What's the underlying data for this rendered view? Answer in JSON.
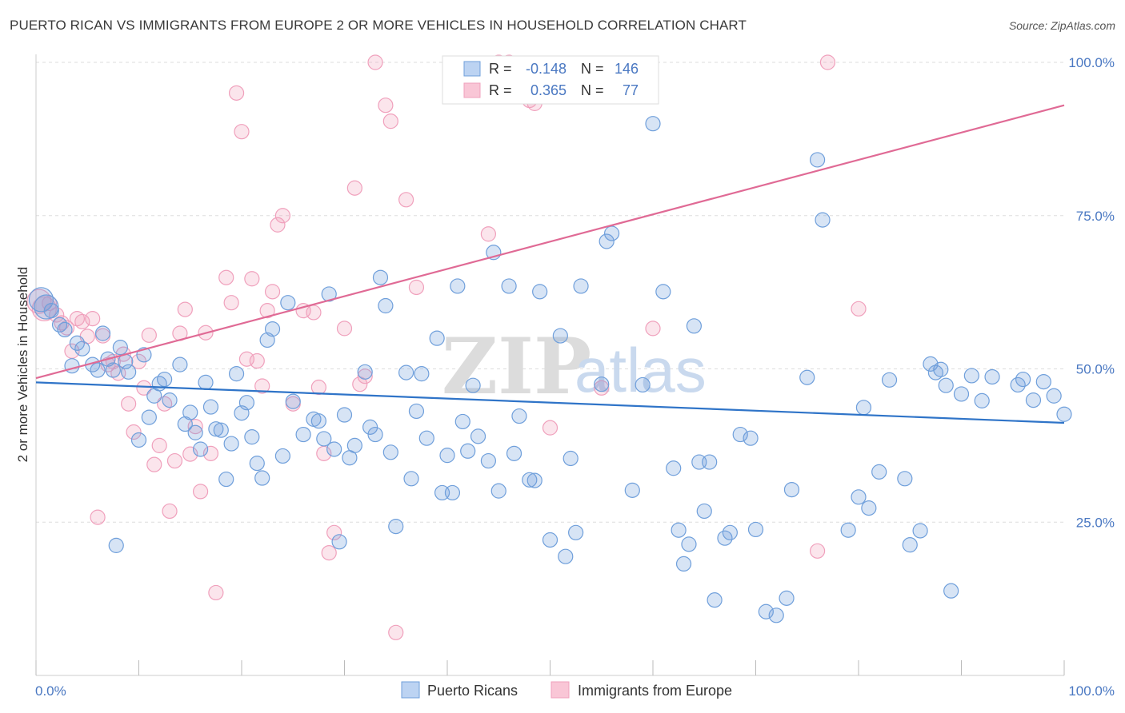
{
  "title": "PUERTO RICAN VS IMMIGRANTS FROM EUROPE 2 OR MORE VEHICLES IN HOUSEHOLD CORRELATION CHART",
  "source": "Source: ZipAtlas.com",
  "watermark": {
    "zip": "ZIP",
    "atlas": "atlas"
  },
  "colors": {
    "blue": "#6f9fdb",
    "pink": "#f0a0bc",
    "blue_line": "#2f74c8",
    "pink_line": "#e06a95",
    "grid": "#dddddd",
    "axis_text": "#4a78c2"
  },
  "stats": {
    "r_label": "R =",
    "n_label": "N =",
    "rows": [
      {
        "series": "Puerto Ricans",
        "r": "-0.148",
        "n": "146"
      },
      {
        "series": "Immigrants from Europe",
        "r": "0.365",
        "n": "77"
      }
    ]
  },
  "legend": [
    "Puerto Ricans",
    "Immigrants from Europe"
  ],
  "chart_data": {
    "type": "scatter",
    "title": "PUERTO RICAN VS IMMIGRANTS FROM EUROPE 2 OR MORE VEHICLES IN HOUSEHOLD CORRELATION CHART",
    "xlabel": "",
    "ylabel": "2 or more Vehicles in Household",
    "xlim": [
      0,
      100
    ],
    "ylim": [
      0,
      100
    ],
    "x_tick_labels": [
      "0.0%",
      "100.0%"
    ],
    "y_tick_labels": [
      "25.0%",
      "50.0%",
      "75.0%",
      "100.0%"
    ],
    "y_ticks": [
      25,
      50,
      75,
      100
    ],
    "grid": true,
    "legend_position": "bottom",
    "series": [
      {
        "name": "Puerto Ricans",
        "trend": {
          "x": [
            0,
            100
          ],
          "y": [
            47.8,
            41.2
          ]
        },
        "points": [
          [
            0.5,
            61.3
          ],
          [
            1.0,
            60.1
          ],
          [
            1.5,
            59.5
          ],
          [
            2.3,
            57.2
          ],
          [
            2.8,
            56.4
          ],
          [
            3.5,
            50.5
          ],
          [
            4.0,
            54.2
          ],
          [
            4.5,
            53.3
          ],
          [
            5.5,
            50.7
          ],
          [
            6.0,
            49.8
          ],
          [
            6.5,
            55.8
          ],
          [
            7.0,
            51.6
          ],
          [
            7.5,
            49.8
          ],
          [
            7.8,
            21.2
          ],
          [
            8.2,
            53.5
          ],
          [
            8.7,
            51.2
          ],
          [
            9.0,
            49.5
          ],
          [
            10.0,
            38.4
          ],
          [
            10.5,
            52.3
          ],
          [
            11.0,
            42.1
          ],
          [
            11.5,
            45.6
          ],
          [
            12.0,
            47.6
          ],
          [
            12.5,
            48.3
          ],
          [
            13.0,
            44.9
          ],
          [
            14.0,
            50.7
          ],
          [
            14.5,
            41.0
          ],
          [
            15.0,
            42.9
          ],
          [
            15.5,
            39.6
          ],
          [
            16.0,
            36.9
          ],
          [
            16.5,
            47.8
          ],
          [
            17.0,
            43.8
          ],
          [
            17.5,
            40.2
          ],
          [
            18.0,
            40.0
          ],
          [
            18.5,
            32.0
          ],
          [
            19.0,
            37.8
          ],
          [
            19.5,
            49.2
          ],
          [
            20.0,
            42.8
          ],
          [
            20.5,
            44.5
          ],
          [
            21.0,
            38.9
          ],
          [
            21.5,
            34.6
          ],
          [
            22.0,
            32.2
          ],
          [
            22.5,
            54.7
          ],
          [
            23.0,
            56.5
          ],
          [
            24.0,
            35.8
          ],
          [
            24.5,
            60.8
          ],
          [
            25.0,
            44.7
          ],
          [
            26.0,
            39.3
          ],
          [
            27.0,
            41.8
          ],
          [
            27.5,
            41.5
          ],
          [
            28.0,
            38.6
          ],
          [
            28.5,
            62.2
          ],
          [
            29.0,
            36.9
          ],
          [
            29.5,
            21.8
          ],
          [
            30.0,
            42.5
          ],
          [
            30.5,
            35.5
          ],
          [
            31.0,
            37.5
          ],
          [
            32.0,
            49.5
          ],
          [
            32.5,
            40.5
          ],
          [
            33.0,
            39.3
          ],
          [
            33.5,
            64.9
          ],
          [
            34.0,
            60.3
          ],
          [
            34.5,
            36.4
          ],
          [
            35.0,
            24.3
          ],
          [
            36.0,
            49.4
          ],
          [
            36.5,
            32.1
          ],
          [
            37.0,
            43.1
          ],
          [
            37.5,
            49.2
          ],
          [
            38.0,
            38.7
          ],
          [
            39.0,
            55.0
          ],
          [
            39.5,
            29.8
          ],
          [
            40.0,
            35.9
          ],
          [
            40.5,
            29.8
          ],
          [
            41.0,
            63.5
          ],
          [
            41.5,
            41.4
          ],
          [
            42.0,
            36.6
          ],
          [
            42.5,
            47.3
          ],
          [
            43.0,
            39.0
          ],
          [
            44.0,
            35.0
          ],
          [
            44.5,
            69.0
          ],
          [
            45.0,
            30.1
          ],
          [
            46.0,
            63.5
          ],
          [
            46.5,
            36.2
          ],
          [
            47.0,
            42.3
          ],
          [
            48.0,
            31.9
          ],
          [
            48.5,
            31.8
          ],
          [
            49.0,
            62.6
          ],
          [
            50.0,
            22.1
          ],
          [
            51.0,
            55.4
          ],
          [
            51.5,
            19.4
          ],
          [
            52.0,
            35.4
          ],
          [
            52.5,
            23.3
          ],
          [
            53.0,
            63.5
          ],
          [
            55.0,
            47.5
          ],
          [
            55.5,
            70.8
          ],
          [
            56.0,
            72.1
          ],
          [
            58.0,
            30.2
          ],
          [
            59.0,
            47.4
          ],
          [
            60.0,
            90.0
          ],
          [
            61.0,
            62.6
          ],
          [
            62.0,
            33.8
          ],
          [
            62.5,
            23.7
          ],
          [
            63.0,
            18.2
          ],
          [
            63.5,
            21.4
          ],
          [
            64.0,
            57.0
          ],
          [
            64.5,
            34.8
          ],
          [
            65.0,
            26.8
          ],
          [
            65.5,
            34.8
          ],
          [
            66.0,
            12.3
          ],
          [
            67.0,
            22.4
          ],
          [
            67.5,
            23.3
          ],
          [
            68.5,
            39.3
          ],
          [
            69.5,
            38.7
          ],
          [
            70.0,
            23.8
          ],
          [
            71.0,
            10.4
          ],
          [
            72.0,
            9.8
          ],
          [
            73.0,
            12.6
          ],
          [
            73.5,
            30.3
          ],
          [
            75.0,
            48.6
          ],
          [
            76.0,
            84.1
          ],
          [
            76.5,
            74.3
          ],
          [
            79.0,
            23.7
          ],
          [
            80.0,
            29.1
          ],
          [
            80.5,
            43.7
          ],
          [
            81.0,
            27.3
          ],
          [
            82.0,
            33.2
          ],
          [
            83.0,
            48.2
          ],
          [
            84.5,
            32.1
          ],
          [
            85.0,
            21.3
          ],
          [
            86.0,
            23.6
          ],
          [
            87.0,
            50.8
          ],
          [
            87.5,
            49.4
          ],
          [
            88.0,
            49.9
          ],
          [
            88.5,
            47.3
          ],
          [
            89.0,
            13.8
          ],
          [
            90.0,
            45.9
          ],
          [
            91.0,
            48.9
          ],
          [
            92.0,
            44.8
          ],
          [
            93.0,
            48.7
          ],
          [
            95.5,
            47.4
          ],
          [
            96.0,
            48.3
          ],
          [
            97.0,
            44.9
          ],
          [
            98.0,
            47.9
          ],
          [
            99.0,
            45.6
          ],
          [
            100.0,
            42.6
          ]
        ]
      },
      {
        "name": "Immigrants from Europe",
        "trend": {
          "x": [
            0,
            100
          ],
          "y": [
            48.5,
            93.0
          ]
        },
        "points": [
          [
            0.3,
            61.0
          ],
          [
            0.8,
            59.8
          ],
          [
            1.3,
            60.7
          ],
          [
            2.0,
            58.8
          ],
          [
            2.5,
            57.5
          ],
          [
            3.0,
            56.7
          ],
          [
            3.5,
            52.9
          ],
          [
            4.0,
            58.2
          ],
          [
            4.5,
            57.7
          ],
          [
            5.0,
            55.3
          ],
          [
            5.5,
            58.2
          ],
          [
            6.0,
            25.8
          ],
          [
            6.5,
            55.4
          ],
          [
            7.0,
            50.7
          ],
          [
            7.5,
            51.2
          ],
          [
            8.0,
            49.3
          ],
          [
            8.5,
            52.4
          ],
          [
            9.0,
            44.3
          ],
          [
            9.5,
            39.7
          ],
          [
            10.0,
            51.2
          ],
          [
            10.5,
            46.9
          ],
          [
            11.0,
            55.5
          ],
          [
            11.5,
            34.4
          ],
          [
            12.0,
            37.5
          ],
          [
            12.5,
            44.3
          ],
          [
            13.0,
            26.8
          ],
          [
            13.5,
            35.0
          ],
          [
            14.0,
            55.8
          ],
          [
            14.5,
            59.7
          ],
          [
            15.0,
            36.1
          ],
          [
            15.5,
            40.6
          ],
          [
            16.0,
            30.0
          ],
          [
            16.5,
            55.9
          ],
          [
            17.0,
            36.2
          ],
          [
            17.5,
            13.5
          ],
          [
            18.5,
            64.9
          ],
          [
            19.0,
            60.8
          ],
          [
            19.5,
            95.0
          ],
          [
            20.0,
            88.7
          ],
          [
            20.5,
            51.6
          ],
          [
            21.0,
            64.7
          ],
          [
            21.5,
            51.3
          ],
          [
            22.0,
            47.2
          ],
          [
            22.5,
            59.5
          ],
          [
            23.0,
            62.6
          ],
          [
            23.5,
            73.5
          ],
          [
            24.0,
            75.0
          ],
          [
            25.0,
            44.3
          ],
          [
            26.0,
            59.5
          ],
          [
            27.0,
            59.2
          ],
          [
            27.5,
            47.0
          ],
          [
            28.0,
            36.2
          ],
          [
            28.5,
            20.0
          ],
          [
            29.0,
            23.3
          ],
          [
            30.0,
            56.6
          ],
          [
            31.0,
            79.5
          ],
          [
            31.5,
            47.5
          ],
          [
            32.0,
            48.8
          ],
          [
            33.0,
            100.0
          ],
          [
            34.0,
            93.0
          ],
          [
            34.5,
            90.4
          ],
          [
            35.0,
            7.0
          ],
          [
            36.0,
            77.6
          ],
          [
            37.0,
            63.3
          ],
          [
            44.0,
            72.0
          ],
          [
            45.0,
            100.0
          ],
          [
            46.0,
            100.0
          ],
          [
            47.0,
            99.5
          ],
          [
            48.0,
            93.8
          ],
          [
            48.5,
            93.3
          ],
          [
            50.0,
            40.4
          ],
          [
            55.0,
            46.9
          ],
          [
            60.0,
            56.6
          ],
          [
            76.0,
            20.3
          ],
          [
            77.0,
            100.0
          ],
          [
            80.0,
            59.8
          ]
        ]
      }
    ]
  }
}
